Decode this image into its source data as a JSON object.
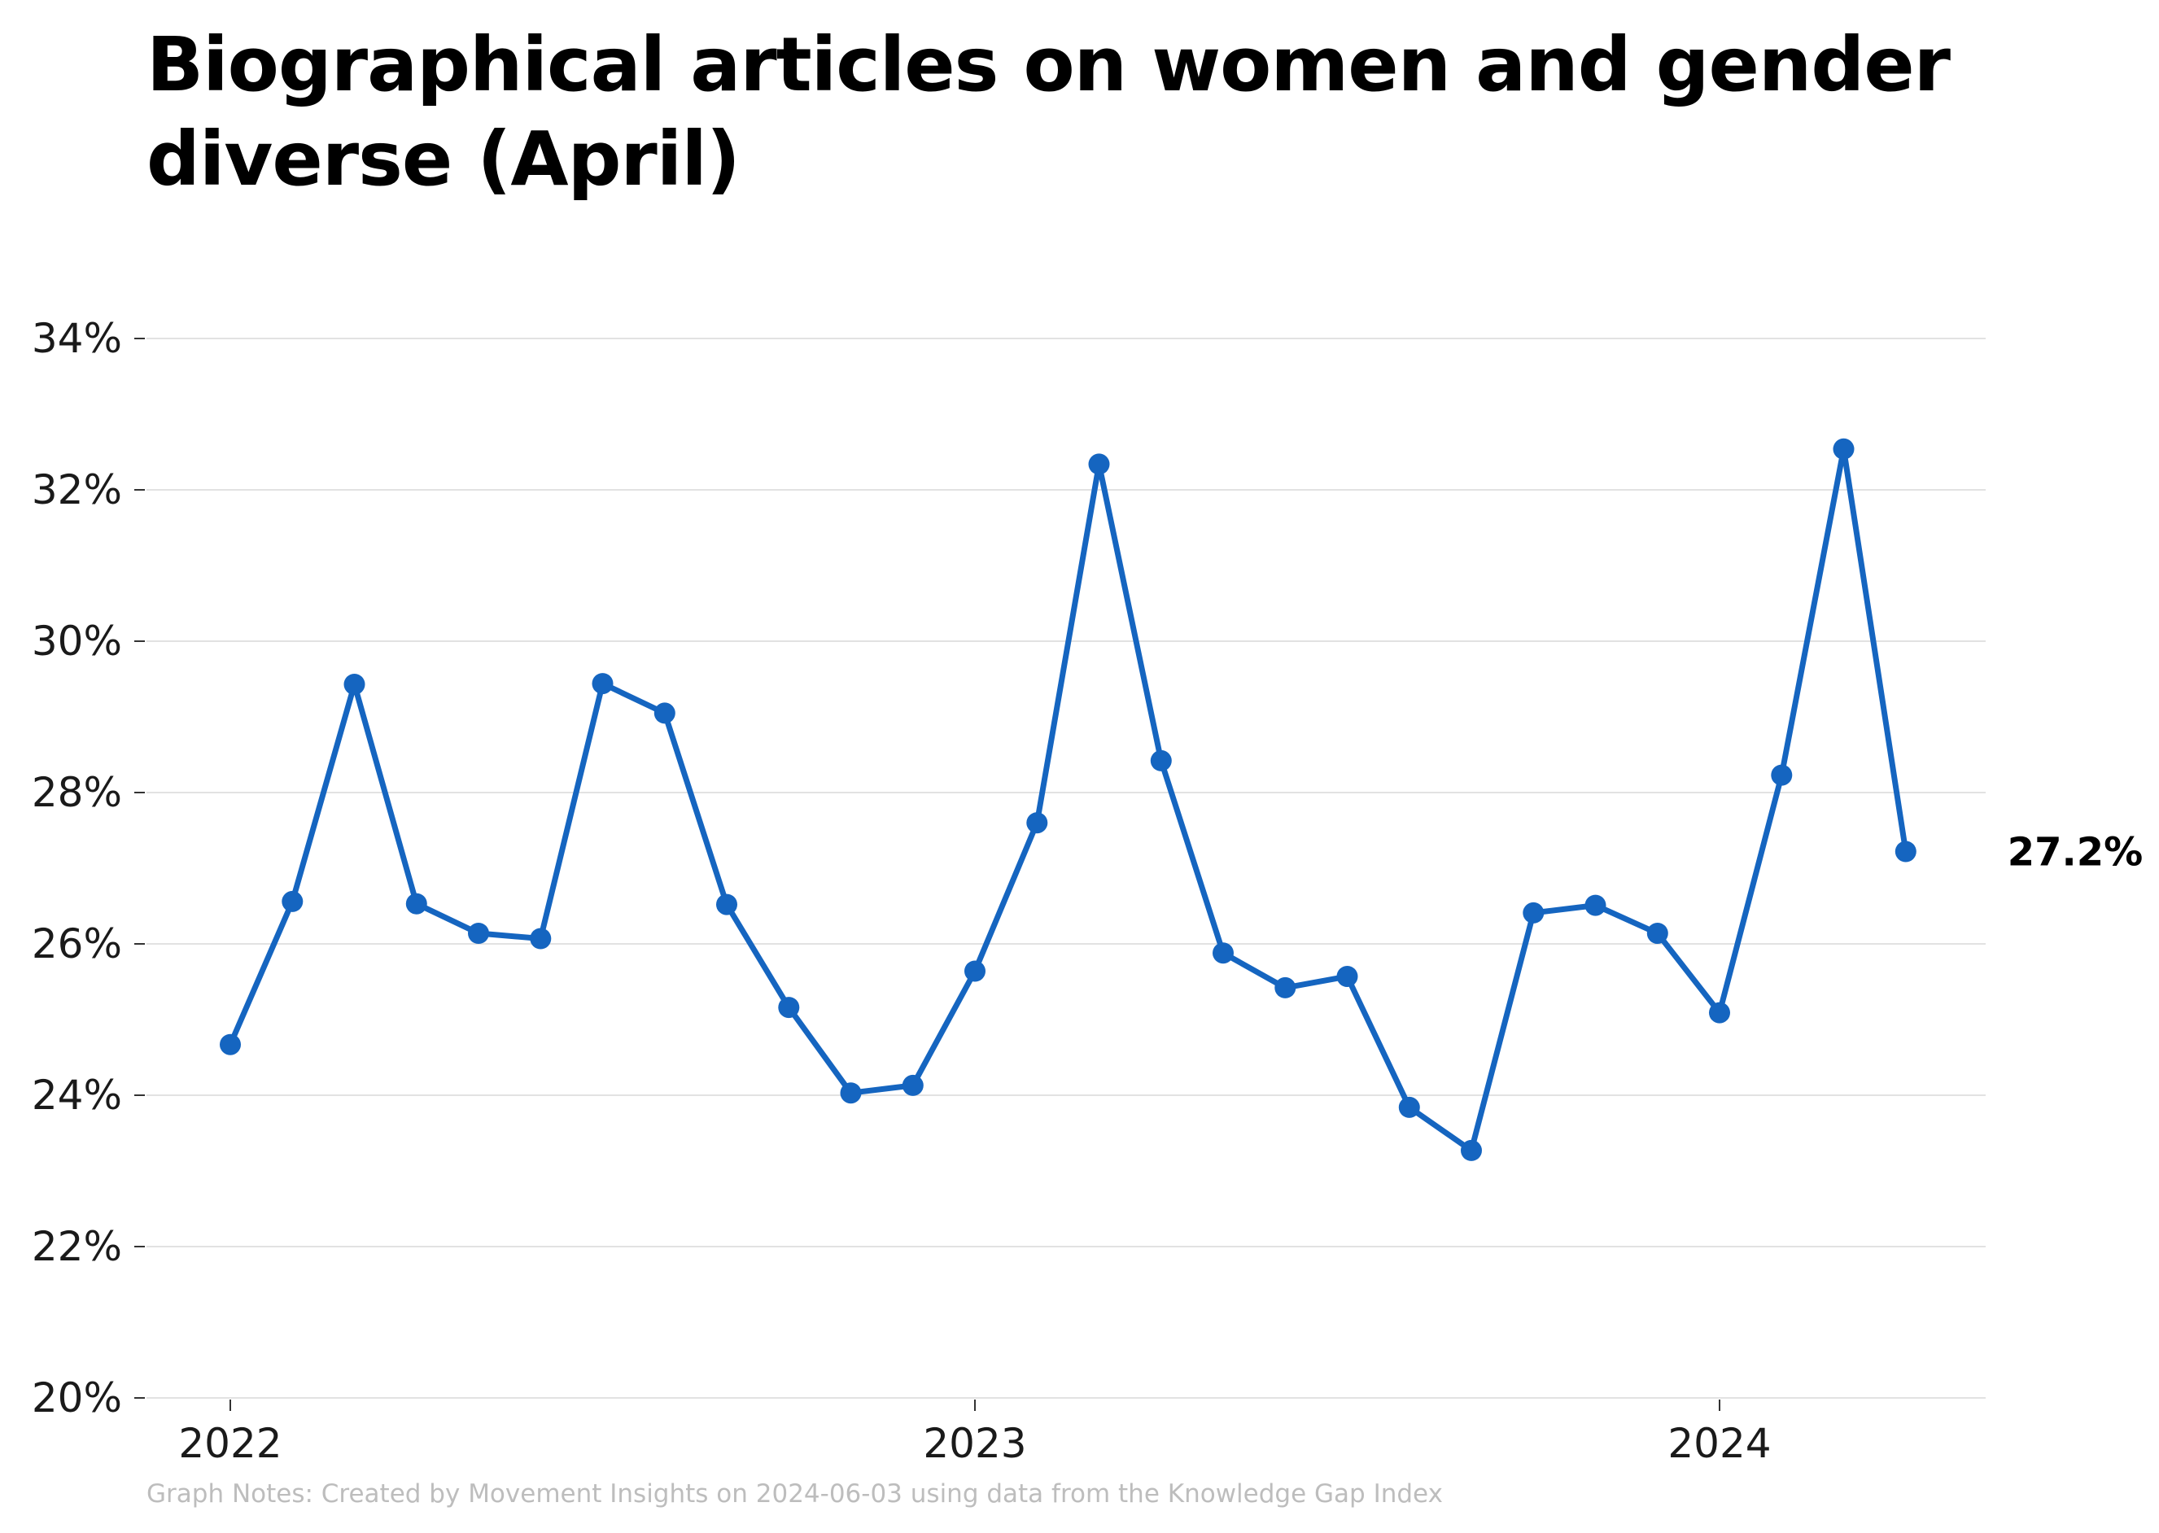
{
  "chart_data": {
    "type": "line",
    "title": "Biographical articles on women and gender diverse (April)",
    "xlabel": "",
    "ylabel": "",
    "ylim": [
      0.2,
      0.34
    ],
    "y_ticks": [
      0.2,
      0.22,
      0.24,
      0.26,
      0.28,
      0.3,
      0.32,
      0.34
    ],
    "y_tick_labels": [
      "20%",
      "22%",
      "24%",
      "26%",
      "28%",
      "30%",
      "32%",
      "34%"
    ],
    "x_ticks": [
      "2022-01",
      "2023-01",
      "2024-01"
    ],
    "x_tick_labels": [
      "2022",
      "2023",
      "2024"
    ],
    "grid": "horizontal",
    "legend": "none",
    "end_label": "27.2%",
    "colors": {
      "line": "#1565c0",
      "grid": "#d9d9d9",
      "footnote": "#bdbdbd"
    },
    "series": [
      {
        "x": [
          "2022-01",
          "2022-02",
          "2022-03",
          "2022-04",
          "2022-05",
          "2022-06",
          "2022-07",
          "2022-08",
          "2022-09",
          "2022-10",
          "2022-11",
          "2022-12",
          "2023-01",
          "2023-02",
          "2023-03",
          "2023-04",
          "2023-05",
          "2023-06",
          "2023-07",
          "2023-08",
          "2023-09",
          "2023-10",
          "2023-11",
          "2023-12",
          "2024-01",
          "2024-02",
          "2024-03",
          "2024-04"
        ],
        "values": [
          0.2467,
          0.2656,
          0.2943,
          0.2653,
          0.2614,
          0.2607,
          0.2944,
          0.2905,
          0.2652,
          0.2516,
          0.2403,
          0.2413,
          0.2564,
          0.276,
          0.3234,
          0.2842,
          0.2588,
          0.2542,
          0.2557,
          0.2384,
          0.2327,
          0.2641,
          0.2651,
          0.2614,
          0.2509,
          0.2823,
          0.3254,
          0.2722
        ]
      }
    ]
  },
  "footnote": "Graph Notes: Created by Movement Insights on 2024-06-03 using data from the Knowledge Gap Index"
}
